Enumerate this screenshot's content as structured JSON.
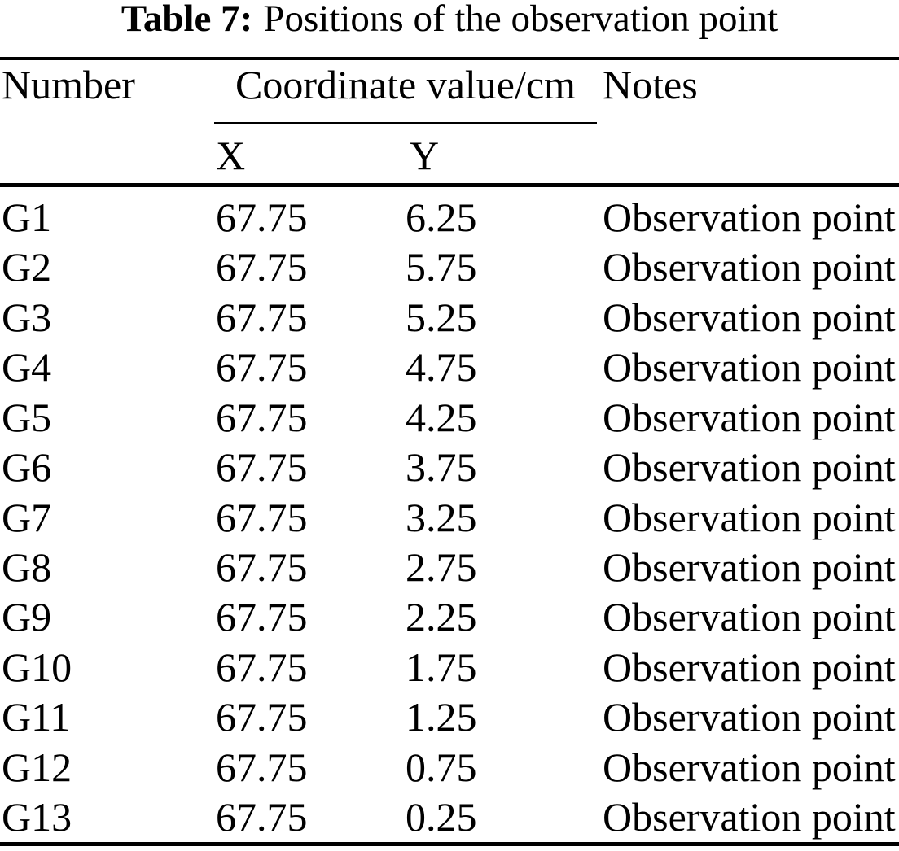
{
  "table": {
    "caption": {
      "label": "Table 7:",
      "text": "Positions of the observation point"
    },
    "headers": {
      "number": "Number",
      "coordinate_group": "Coordinate value/cm",
      "x": "X",
      "y": "Y",
      "notes": "Notes"
    },
    "rows": [
      {
        "number": "G1",
        "x": "67.75",
        "y": "6.25",
        "notes": "Observation point"
      },
      {
        "number": "G2",
        "x": "67.75",
        "y": "5.75",
        "notes": "Observation point"
      },
      {
        "number": "G3",
        "x": "67.75",
        "y": "5.25",
        "notes": "Observation point"
      },
      {
        "number": "G4",
        "x": "67.75",
        "y": "4.75",
        "notes": "Observation point"
      },
      {
        "number": "G5",
        "x": "67.75",
        "y": "4.25",
        "notes": "Observation point"
      },
      {
        "number": "G6",
        "x": "67.75",
        "y": "3.75",
        "notes": "Observation point"
      },
      {
        "number": "G7",
        "x": "67.75",
        "y": "3.25",
        "notes": "Observation point"
      },
      {
        "number": "G8",
        "x": "67.75",
        "y": "2.75",
        "notes": "Observation point"
      },
      {
        "number": "G9",
        "x": "67.75",
        "y": "2.25",
        "notes": "Observation point"
      },
      {
        "number": "G10",
        "x": "67.75",
        "y": "1.75",
        "notes": "Observation point"
      },
      {
        "number": "G11",
        "x": "67.75",
        "y": "1.25",
        "notes": "Observation point"
      },
      {
        "number": "G12",
        "x": "67.75",
        "y": "0.75",
        "notes": "Observation point"
      },
      {
        "number": "G13",
        "x": "67.75",
        "y": "0.25",
        "notes": "Observation point"
      }
    ],
    "text_color": "#000000",
    "background_color": "#ffffff"
  }
}
